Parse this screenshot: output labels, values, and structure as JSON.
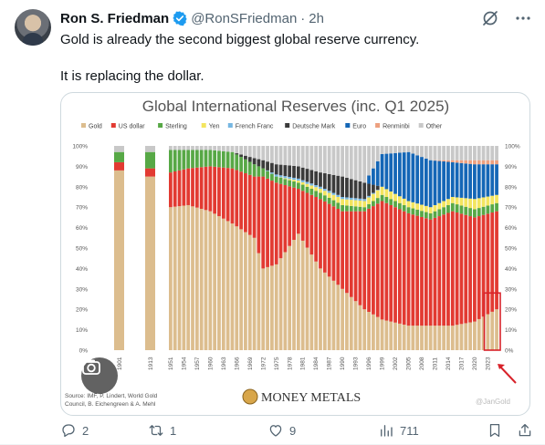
{
  "post": {
    "author_name": "Ron S. Friedman",
    "handle": "@RonSFriedman",
    "separator": "·",
    "time": "2h",
    "line1": "Gold is already the second biggest global reserve currency.",
    "line2": "It is replacing the dollar."
  },
  "icons": {
    "verified": "verified-badge-icon",
    "grok": "grok-icon",
    "more": "more-icon",
    "lens": "lens-search-icon",
    "reply": "reply-icon",
    "repost": "repost-icon",
    "like": "like-icon",
    "views": "views-icon",
    "bookmark": "bookmark-icon",
    "share": "share-icon"
  },
  "actions": {
    "replies": "2",
    "reposts": "1",
    "likes": "9",
    "views": "711"
  },
  "colors": {
    "gold": "#dcbd8e",
    "us_dollar": "#e23a32",
    "sterling": "#57a846",
    "yen": "#f3e55f",
    "french_franc": "#76b7e2",
    "deutsche_mark": "#3b3b3b",
    "euro": "#1466b6",
    "renminbi": "#eda07f",
    "other": "#c8c8c8",
    "brand": "#1d9bf0",
    "muted": "#536471"
  },
  "chart_data": {
    "type": "bar",
    "stacked": true,
    "title": "Global International Reserves (inc. Q1 2025)",
    "legend_position": "top",
    "ylim": [
      0,
      100
    ],
    "y_ticks": [
      "0%",
      "10%",
      "20%",
      "30%",
      "40%",
      "50%",
      "60%",
      "70%",
      "80%",
      "90%",
      "100%"
    ],
    "x_tick_labels": [
      "1901",
      "1913",
      "1951",
      "1954",
      "1957",
      "1960",
      "1963",
      "1966",
      "1969",
      "1972",
      "1975",
      "1978",
      "1981",
      "1984",
      "1987",
      "1990",
      "1993",
      "1996",
      "1999",
      "2002",
      "2005",
      "2008",
      "2011",
      "2014",
      "2017",
      "2020",
      "2023"
    ],
    "series_order": [
      "Gold",
      "US dollar",
      "Sterling",
      "Yen",
      "French Franc",
      "Deutsche Mark",
      "Euro",
      "Renminbi",
      "Other"
    ],
    "legend": [
      "Gold",
      "US dollar",
      "Sterling",
      "Yen",
      "French Franc",
      "Deutsche Mark",
      "Euro",
      "Renminbi",
      "Other"
    ],
    "keyframes": [
      {
        "year": 1901,
        "values": [
          88,
          4,
          5,
          0,
          0,
          0,
          0,
          0,
          3
        ]
      },
      {
        "year": 1913,
        "values": [
          85,
          4,
          8,
          0,
          0,
          0,
          0,
          0,
          3
        ]
      },
      {
        "year": 1951,
        "values": [
          70,
          17,
          11,
          0,
          0,
          0,
          0,
          0,
          2
        ]
      },
      {
        "year": 1955,
        "values": [
          71,
          18,
          9,
          0,
          0,
          0,
          0,
          0,
          2
        ]
      },
      {
        "year": 1960,
        "values": [
          68,
          22,
          8,
          0,
          0,
          0,
          0,
          0,
          2
        ]
      },
      {
        "year": 1965,
        "values": [
          62,
          27,
          8,
          0,
          0,
          0,
          0,
          0,
          3
        ]
      },
      {
        "year": 1970,
        "values": [
          55,
          30,
          6,
          0,
          0,
          3,
          0,
          0,
          6
        ]
      },
      {
        "year": 1972,
        "values": [
          40,
          45,
          4,
          0,
          0,
          4,
          0,
          0,
          7
        ]
      },
      {
        "year": 1975,
        "values": [
          42,
          40,
          3,
          0,
          1,
          5,
          0,
          0,
          9
        ]
      },
      {
        "year": 1980,
        "values": [
          57,
          22,
          3,
          1,
          1,
          6,
          0,
          0,
          10
        ]
      },
      {
        "year": 1985,
        "values": [
          40,
          34,
          3,
          2,
          1,
          7,
          0,
          0,
          13
        ]
      },
      {
        "year": 1990,
        "values": [
          30,
          38,
          3,
          3,
          1,
          10,
          0,
          0,
          15
        ]
      },
      {
        "year": 1995,
        "values": [
          20,
          48,
          2,
          3,
          1,
          8,
          0,
          0,
          18
        ]
      },
      {
        "year": 1999,
        "values": [
          15,
          58,
          3,
          4,
          0,
          0,
          16,
          0,
          4
        ]
      },
      {
        "year": 2005,
        "values": [
          12,
          55,
          3,
          3,
          0,
          0,
          24,
          0,
          3
        ]
      },
      {
        "year": 2010,
        "values": [
          12,
          52,
          3,
          3,
          0,
          0,
          23,
          0,
          7
        ]
      },
      {
        "year": 2015,
        "values": [
          12,
          56,
          4,
          3,
          0,
          0,
          17,
          1,
          7
        ]
      },
      {
        "year": 2020,
        "values": [
          14,
          51,
          4,
          5,
          0,
          0,
          17,
          2,
          7
        ]
      },
      {
        "year": 2025,
        "values": [
          20,
          48,
          4,
          4,
          0,
          0,
          15,
          2,
          7
        ]
      }
    ],
    "highlight": {
      "from_year": 2023,
      "to_year": 2025,
      "low_pct": 0,
      "high_pct": 28
    },
    "source_line1": "Source: IMF, P. Lindert, World Gold",
    "source_line2": "Council, B. Eichengreen & A. Mehl",
    "brand_text": "MONEY METALS",
    "watermark": "@JanGold"
  }
}
